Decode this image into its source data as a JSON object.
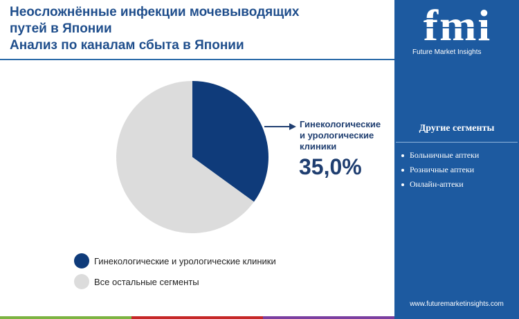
{
  "header": {
    "title_lines": [
      "Неосложнённые инфекции мочевыводящих",
      "путей в Японии",
      "Анализ по каналам сбыта в Японии"
    ]
  },
  "branding": {
    "logo_text": "fmi",
    "logo_subtitle": "Future Market Insights",
    "website": "www.futuremarketinsights.com"
  },
  "sidebar": {
    "title": "Другие сегменты",
    "items": [
      "Больничные аптеки",
      "Розничные аптеки",
      "Онлайн-аптеки"
    ]
  },
  "callout": {
    "label_lines": [
      "Гинекологические",
      "и урологические",
      "клиники"
    ],
    "value": "35,0%"
  },
  "colors": {
    "primary": "#0f3b7a",
    "secondary": "#dcdcdc",
    "sidebar": "#1d5aa0",
    "title": "#1f4e8c"
  },
  "chart_data": {
    "type": "pie",
    "title": "",
    "series": [
      {
        "name": "Гинекологические и урологические клиники",
        "value": 35.0,
        "color": "#0f3b7a"
      },
      {
        "name": "Все остальные сегменты",
        "value": 65.0,
        "color": "#dcdcdc"
      }
    ],
    "legend_position": "bottom-left"
  }
}
